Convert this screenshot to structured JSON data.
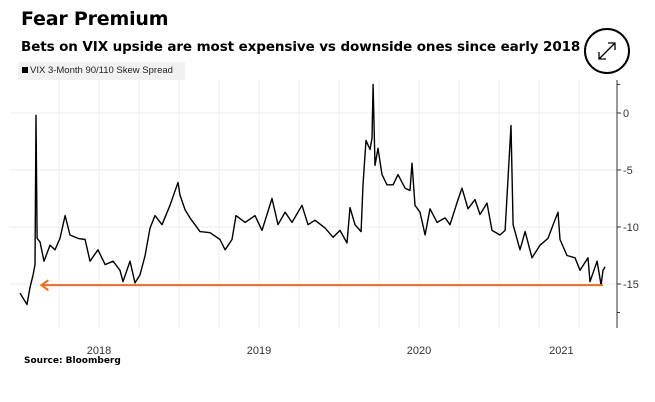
{
  "header": {
    "title": "Fear Premium",
    "subtitle": "Bets on VIX upside are most expensive vs downside ones since early 2018",
    "expand_icon": "expand-arrows-icon"
  },
  "legend": {
    "label": "VIX 3-Month 90/110 Skew Spread",
    "color": "#000000"
  },
  "footer": {
    "source": "Source: Bloomberg"
  },
  "chart_data": {
    "type": "line",
    "title": "Fear Premium",
    "subtitle": "Bets on VIX upside are most expensive vs downside ones since early 2018",
    "xlabel": "",
    "ylabel": "",
    "xlim": [
      2018.0,
      2021.75
    ],
    "ylim": [
      -19,
      3
    ],
    "x_ticks": [
      {
        "label": "2018",
        "value": 2018.5
      },
      {
        "label": "2019",
        "value": 2019.5
      },
      {
        "label": "2020",
        "value": 2020.5
      },
      {
        "label": "2021",
        "value": 2021.39
      }
    ],
    "y_ticks": [
      {
        "label": "0",
        "value": 0
      },
      {
        "label": "-5",
        "value": -5
      },
      {
        "label": "-10",
        "value": -10
      },
      {
        "label": "-15",
        "value": -15
      }
    ],
    "grid": true,
    "legend_position": "top-left",
    "series": [
      {
        "name": "VIX 3-Month 90/110 Skew Spread",
        "color": "#000000",
        "x": [
          2018.006,
          2018.05,
          2018.069,
          2018.088,
          2018.1,
          2018.106,
          2018.113,
          2018.131,
          2018.156,
          2018.194,
          2018.225,
          2018.256,
          2018.288,
          2018.319,
          2018.369,
          2018.413,
          2018.444,
          2018.494,
          2018.538,
          2018.588,
          2018.631,
          2018.65,
          2018.694,
          2018.725,
          2018.756,
          2018.788,
          2018.819,
          2018.85,
          2018.894,
          2018.944,
          2018.994,
          2019.006,
          2019.038,
          2019.069,
          2019.131,
          2019.194,
          2019.256,
          2019.288,
          2019.331,
          2019.356,
          2019.413,
          2019.475,
          2019.519,
          2019.581,
          2019.619,
          2019.663,
          2019.706,
          2019.769,
          2019.806,
          2019.85,
          2019.913,
          2019.963,
          2020.006,
          2020.05,
          2020.069,
          2020.1,
          2020.138,
          2020.15,
          2020.169,
          2020.194,
          2020.206,
          2020.213,
          2020.225,
          2020.244,
          2020.269,
          2020.3,
          2020.338,
          2020.369,
          2020.413,
          2020.444,
          2020.456,
          2020.475,
          2020.506,
          2020.538,
          2020.569,
          2020.613,
          2020.663,
          2020.694,
          2020.744,
          2020.769,
          2020.806,
          2020.85,
          2020.881,
          2020.925,
          2020.956,
          2021.006,
          2021.038,
          2021.075,
          2021.088,
          2021.131,
          2021.163,
          2021.206,
          2021.256,
          2021.306,
          2021.338,
          2021.369,
          2021.381,
          2021.425,
          2021.475,
          2021.506,
          2021.556,
          2021.569,
          2021.613,
          2021.638,
          2021.65,
          2021.663
        ],
        "y": [
          -15.8,
          -16.8,
          -15.3,
          -14.2,
          -13.3,
          -0.2,
          -11,
          -11.3,
          -13,
          -11.6,
          -12,
          -11,
          -9,
          -10.7,
          -11,
          -11.1,
          -13,
          -12,
          -13.3,
          -13,
          -13.8,
          -14.8,
          -13,
          -14.9,
          -14.2,
          -12.5,
          -10.1,
          -9,
          -9.8,
          -8.1,
          -6.1,
          -7.2,
          -8.5,
          -9.2,
          -10.4,
          -10.5,
          -11.1,
          -12,
          -11.1,
          -9,
          -9.6,
          -9,
          -10.3,
          -7.5,
          -9.8,
          -8.7,
          -9.6,
          -8.1,
          -9.8,
          -9.4,
          -10.1,
          -10.9,
          -10.3,
          -11.4,
          -8.3,
          -9.8,
          -10.4,
          -6.3,
          -2.4,
          -3.2,
          -2.2,
          2.5,
          -4.6,
          -3.1,
          -5.4,
          -6.3,
          -6.3,
          -5.4,
          -6.6,
          -6.8,
          -4.4,
          -8.1,
          -8.7,
          -10.7,
          -8.4,
          -9.6,
          -9.2,
          -9.8,
          -7.6,
          -6.6,
          -8.4,
          -7.6,
          -8.9,
          -7.9,
          -10.3,
          -10.7,
          -10.3,
          -1.1,
          -9.8,
          -12,
          -10.4,
          -12.7,
          -11.6,
          -11,
          -9.8,
          -8.7,
          -11.1,
          -12.5,
          -12.7,
          -13.8,
          -12.7,
          -14.8,
          -13,
          -15.1,
          -13.8,
          -13.5
        ]
      }
    ],
    "annotations": [
      {
        "type": "arrow",
        "color": "#f26b21",
        "value": -15.1,
        "from": 2021.65,
        "to": 2018.14
      }
    ]
  }
}
